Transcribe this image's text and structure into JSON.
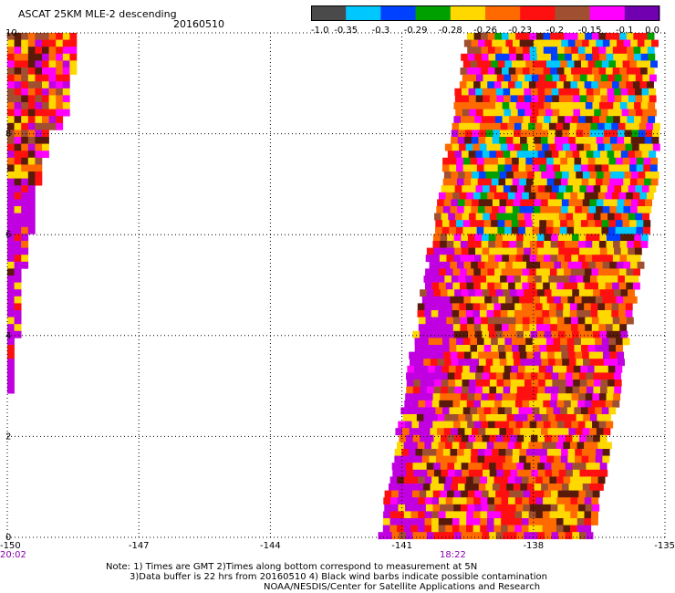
{
  "header": {
    "title": "ASCAT 25KM MLE-2 descending",
    "date": "20160510"
  },
  "colorbar": {
    "colors": [
      "#4a4a4a",
      "#00c8ff",
      "#0040ff",
      "#00a000",
      "#ffd800",
      "#ff6a00",
      "#ff1010",
      "#a05030",
      "#ff00ff",
      "#7000b0"
    ],
    "tick_labels": [
      "-1.0",
      "-0.35",
      "-0.3",
      "-0.29",
      "-0.28",
      "-0.26",
      "-0.23",
      "-0.2",
      "-0.15",
      "-0.1",
      "0.0"
    ]
  },
  "map": {
    "x_ticks": [
      "-150",
      "-147",
      "-144",
      "-141",
      "-138",
      "-135"
    ],
    "y_ticks": [
      "0",
      "2",
      "4",
      "6",
      "8",
      "10"
    ],
    "time_labels": [
      "20:02",
      "18:22"
    ],
    "grid": true,
    "pixel_palette": [
      "#ffd800",
      "#ff6a00",
      "#ff1010",
      "#5a1a0a",
      "#ff00ff",
      "#c000e0",
      "#a05030",
      "#ffd800",
      "#ff1010",
      "#ff6a00"
    ],
    "upper_pixel_palette": [
      "#00c8ff",
      "#0040ff",
      "#00a000",
      "#ffd800",
      "#ff6a00",
      "#ff1010",
      "#5a1a0a",
      "#ff00ff",
      "#ffd800",
      "#ff1010",
      "#ff6a00",
      "#ffd800"
    ]
  },
  "notes": {
    "line1": "Note: 1) Times are GMT 2)Times along bottom correspond to measurement at 5N",
    "line2": "3)Data buffer is 22 hrs from 20160510 4) Black wind barbs indicate possible contamination",
    "line3": "NOAA/NESDIS/Center for Satellite Applications and Research"
  }
}
